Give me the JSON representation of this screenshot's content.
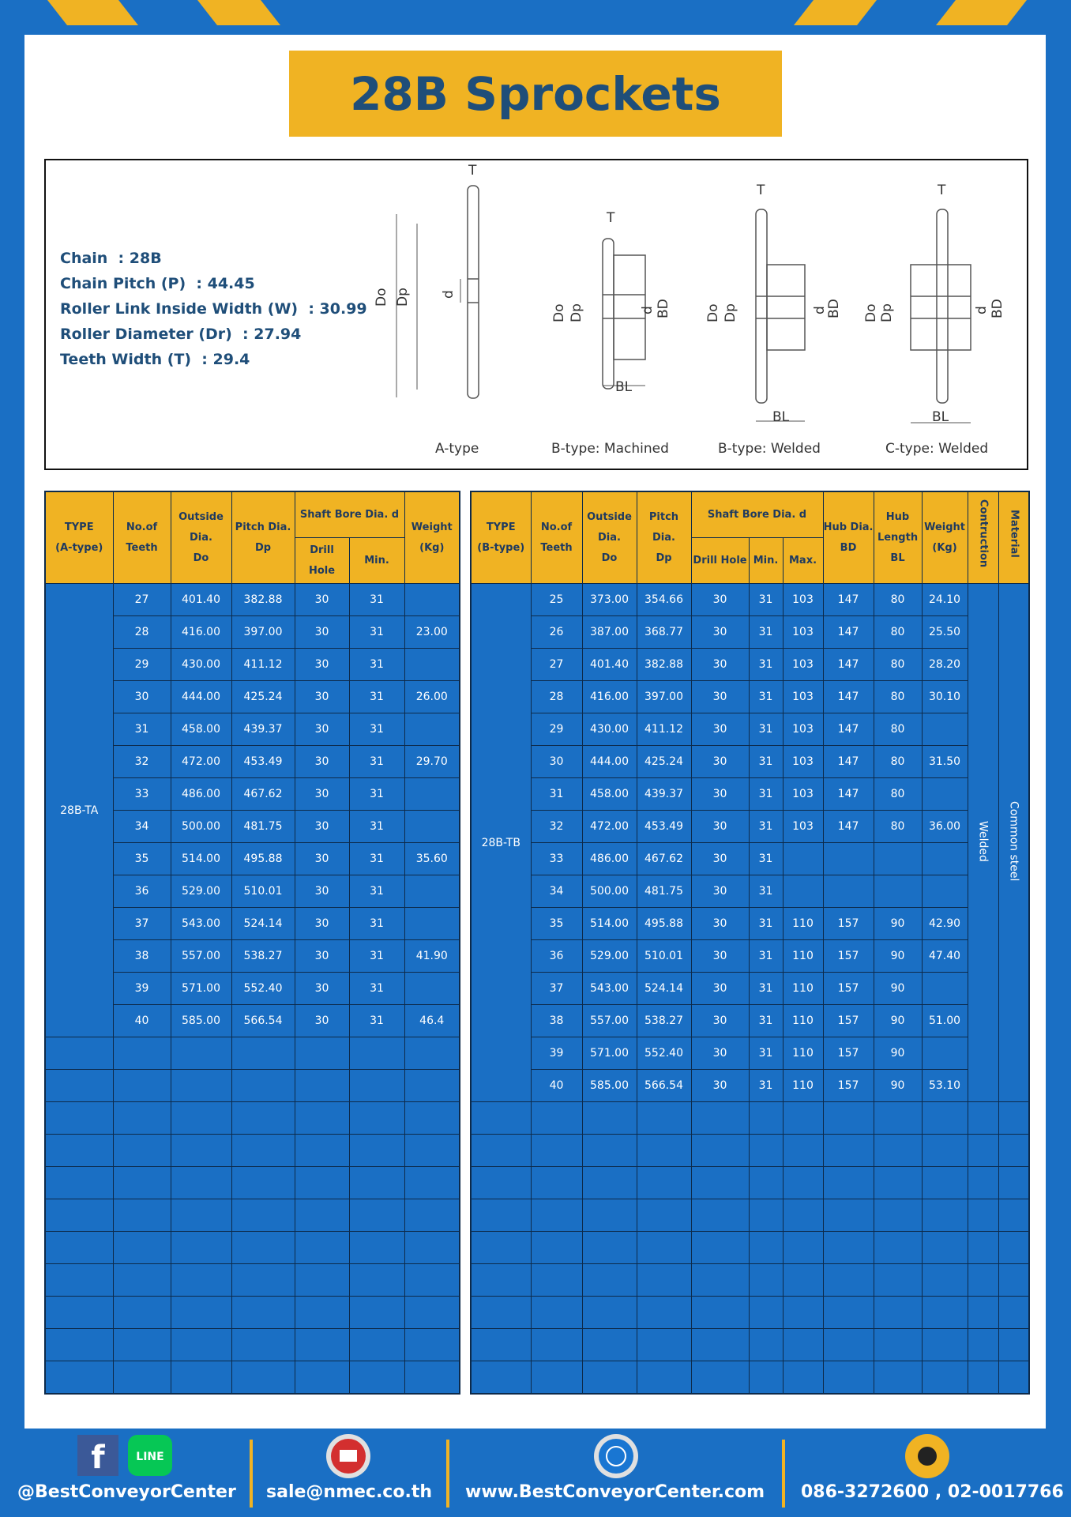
{
  "header": {
    "title": "28B Sprockets"
  },
  "specs": [
    "Chain  : 28B",
    "Chain Pitch (P)  : 44.45",
    "Roller Link Inside Width (W)  : 30.99",
    "Roller Diameter (Dr)  : 27.94",
    "Teeth Width (T)  : 29.4"
  ],
  "diagram": {
    "types": [
      "A-type",
      "B-type: Machined",
      "B-type: Welded",
      "C-type: Welded"
    ],
    "labels": {
      "T": "T",
      "Do": "Do",
      "Dp": "Dp",
      "d": "d",
      "BD": "BD",
      "BL": "BL"
    }
  },
  "table_a": {
    "header": [
      "TYPE\n(A-type)",
      "No.of\nTeeth",
      "Outside\nDia.\nDo",
      "Pitch Dia.\nDp",
      "Shaft Bore Dia. d",
      "Weight\n(Kg)"
    ],
    "subheader": [
      "Drill Hole",
      "Min."
    ],
    "type": "28B-TA",
    "rows": [
      [
        "27",
        "401.40",
        "382.88",
        "30",
        "31",
        null
      ],
      [
        "28",
        "416.00",
        "397.00",
        "30",
        "31",
        "23.00"
      ],
      [
        "29",
        "430.00",
        "411.12",
        "30",
        "31",
        null
      ],
      [
        "30",
        "444.00",
        "425.24",
        "30",
        "31",
        "26.00"
      ],
      [
        "31",
        "458.00",
        "439.37",
        "30",
        "31",
        null
      ],
      [
        "32",
        "472.00",
        "453.49",
        "30",
        "31",
        "29.70"
      ],
      [
        "33",
        "486.00",
        "467.62",
        "30",
        "31",
        null
      ],
      [
        "34",
        "500.00",
        "481.75",
        "30",
        "31",
        null
      ],
      [
        "35",
        "514.00",
        "495.88",
        "30",
        "31",
        "35.60"
      ],
      [
        "36",
        "529.00",
        "510.01",
        "30",
        "31",
        null
      ],
      [
        "37",
        "543.00",
        "524.14",
        "30",
        "31",
        null
      ],
      [
        "38",
        "557.00",
        "538.27",
        "30",
        "31",
        "41.90"
      ],
      [
        "39",
        "571.00",
        "552.40",
        "30",
        "31",
        null
      ],
      [
        "40",
        "585.00",
        "566.54",
        "30",
        "31",
        "46.4"
      ]
    ]
  },
  "table_b": {
    "header": [
      "TYPE\n(B-type)",
      "No.of\nTeeth",
      "Outside\nDia.\nDo",
      "Pitch Dia.\nDp",
      "Shaft Bore Dia. d",
      "Hub Dia.\nBD",
      "Hub\nLength\nBL",
      "Weight\n(Kg)",
      "Contruction",
      "Material"
    ],
    "subheader": [
      "Drill Hole",
      "Min.",
      "Max."
    ],
    "type": "28B-TB",
    "construction": "Welded",
    "material": "Common steel",
    "rows": [
      [
        "25",
        "373.00",
        "354.66",
        "30",
        "31",
        "103",
        "147",
        "80",
        "24.10"
      ],
      [
        "26",
        "387.00",
        "368.77",
        "30",
        "31",
        "103",
        "147",
        "80",
        "25.50"
      ],
      [
        "27",
        "401.40",
        "382.88",
        "30",
        "31",
        "103",
        "147",
        "80",
        "28.20"
      ],
      [
        "28",
        "416.00",
        "397.00",
        "30",
        "31",
        "103",
        "147",
        "80",
        "30.10"
      ],
      [
        "29",
        "430.00",
        "411.12",
        "30",
        "31",
        "103",
        "147",
        "80",
        null
      ],
      [
        "30",
        "444.00",
        "425.24",
        "30",
        "31",
        "103",
        "147",
        "80",
        "31.50"
      ],
      [
        "31",
        "458.00",
        "439.37",
        "30",
        "31",
        "103",
        "147",
        "80",
        null
      ],
      [
        "32",
        "472.00",
        "453.49",
        "30",
        "31",
        "103",
        "147",
        "80",
        "36.00"
      ],
      [
        "33",
        "486.00",
        "467.62",
        "30",
        "31",
        null,
        null,
        null,
        null
      ],
      [
        "34",
        "500.00",
        "481.75",
        "30",
        "31",
        null,
        null,
        null,
        null
      ],
      [
        "35",
        "514.00",
        "495.88",
        "30",
        "31",
        "110",
        "157",
        "90",
        "42.90"
      ],
      [
        "36",
        "529.00",
        "510.01",
        "30",
        "31",
        "110",
        "157",
        "90",
        "47.40"
      ],
      [
        "37",
        "543.00",
        "524.14",
        "30",
        "31",
        "110",
        "157",
        "90",
        null
      ],
      [
        "38",
        "557.00",
        "538.27",
        "30",
        "31",
        "110",
        "157",
        "90",
        "51.00"
      ],
      [
        "39",
        "571.00",
        "552.40",
        "30",
        "31",
        "110",
        "157",
        "90",
        null
      ],
      [
        "40",
        "585.00",
        "566.54",
        "30",
        "31",
        "110",
        "157",
        "90",
        "53.10"
      ]
    ]
  },
  "footer": {
    "facebook_icon": "f",
    "line_icon": "LINE",
    "social": "@BestConveyorCenter",
    "email": "sale@nmec.co.th",
    "website": "www.BestConveyorCenter.com",
    "phone": "086-3272600 , 02-0017766"
  }
}
